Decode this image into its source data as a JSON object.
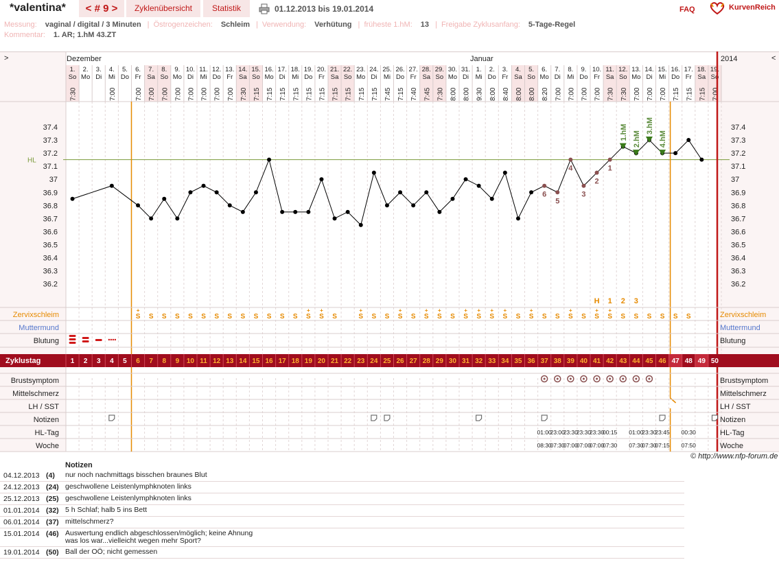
{
  "header": {
    "app_name": "*valentina*",
    "cycle_nav": "< # 9 >",
    "tab_overview": "Zyklenübersicht",
    "tab_stats": "Statistik",
    "date_range": "01.12.2013 bis 19.01.2014",
    "faq": "FAQ",
    "brand": "KurvenReich",
    "print_icon": "printer-icon",
    "logo_icon": "heart-logo-icon"
  },
  "meta": {
    "messung_label": "Messung:",
    "messung": "vaginal / digital / 3 Minuten",
    "oestrogen_label": "Östrogenzeichen:",
    "oestrogen": "Schleim",
    "verwendung_label": "Verwendung:",
    "verwendung": "Verhütung",
    "hm_label": "früheste 1.hM:",
    "hm": "13",
    "freigabe_label": "Freigabe Zyklusanfang:",
    "freigabe": "5-Tage-Regel",
    "kommentar_label": "Kommentar:",
    "kommentar": "1. AR; 1.hM 43.ZT"
  },
  "chart": {
    "left_arrow": ">",
    "right_arrow": "<",
    "month_dec": "Dezember",
    "month_jan": "Januar",
    "year": "2014",
    "hl_label": "HL",
    "days": [
      "1.",
      "2.",
      "3.",
      "4.",
      "5.",
      "6.",
      "7.",
      "8.",
      "9.",
      "10.",
      "11.",
      "12.",
      "13.",
      "14.",
      "15.",
      "16.",
      "17.",
      "18.",
      "19.",
      "20.",
      "21.",
      "22.",
      "23.",
      "24.",
      "25.",
      "26.",
      "27.",
      "28.",
      "29.",
      "30.",
      "31.",
      "1.",
      "2.",
      "3.",
      "4.",
      "5.",
      "6.",
      "7.",
      "8.",
      "9.",
      "10.",
      "11.",
      "12.",
      "13.",
      "14.",
      "15.",
      "16.",
      "17.",
      "18.",
      "19."
    ],
    "weekdays": [
      "So",
      "Mo",
      "Di",
      "Mi",
      "Do",
      "Fr",
      "Sa",
      "So",
      "Mo",
      "Di",
      "Mi",
      "Do",
      "Fr",
      "Sa",
      "So",
      "Mo",
      "Di",
      "Mi",
      "Do",
      "Fr",
      "Sa",
      "So",
      "Mo",
      "Di",
      "Mi",
      "Do",
      "Fr",
      "Sa",
      "So",
      "Mo",
      "Di",
      "Mi",
      "Do",
      "Fr",
      "Sa",
      "So",
      "Mo",
      "Di",
      "Mi",
      "Do",
      "Fr",
      "Sa",
      "So",
      "Mo",
      "Di",
      "Mi",
      "Do",
      "Fr",
      "Sa",
      "So"
    ],
    "times": [
      "7:30",
      "",
      "",
      "7:00",
      "",
      "7:00",
      "7:00",
      "7:00",
      "7:00",
      "7:00",
      "7:00",
      "7:00",
      "7:00",
      "7:30",
      "7:15",
      "7:15",
      "7:15",
      "7:15",
      "7:15",
      "7:15",
      "7:15",
      "7:15",
      "7:15",
      "7:15",
      "7:45",
      "7:15",
      "7:40",
      "7:45",
      "7:30",
      "8:00",
      "8:00",
      "9:30",
      "8:00",
      "8:40",
      "8:00",
      "8:00",
      "8:20",
      "7:00",
      "7:00",
      "7:00",
      "7:00",
      "7:30",
      "7:30",
      "7:00",
      "7:00",
      "7:00",
      "7:15",
      "7:15",
      "7:15",
      "7:00"
    ],
    "temps": [
      36.85,
      null,
      null,
      36.95,
      null,
      36.8,
      36.7,
      36.85,
      36.7,
      36.9,
      36.95,
      36.9,
      36.8,
      36.75,
      36.9,
      37.15,
      36.75,
      36.75,
      36.75,
      37.0,
      36.7,
      36.75,
      36.65,
      37.05,
      36.8,
      36.9,
      36.8,
      36.9,
      36.75,
      36.85,
      37.0,
      36.95,
      36.85,
      37.05,
      36.7,
      36.9,
      36.95,
      36.9,
      37.15,
      36.95,
      37.05,
      37.15,
      37.25,
      37.2,
      37.3,
      37.2,
      37.2,
      37.3,
      37.15,
      null
    ],
    "y_ticks": [
      "37.4",
      "37.3",
      "37.2",
      "37.1",
      "37",
      "36.9",
      "36.8",
      "36.7",
      "36.6",
      "36.5",
      "36.4",
      "36.3",
      "36.2"
    ],
    "hl_value": 37.15,
    "low_numbers": [
      {
        "day": 37,
        "label": "6"
      },
      {
        "day": 38,
        "label": "5"
      },
      {
        "day": 39,
        "label": "4"
      },
      {
        "day": 40,
        "label": "3"
      },
      {
        "day": 41,
        "label": "2"
      },
      {
        "day": 42,
        "label": "1"
      }
    ],
    "high_labels": [
      {
        "day": 43,
        "label": "1.hM"
      },
      {
        "day": 44,
        "label": "2.hM"
      },
      {
        "day": 45,
        "label": "3.hM"
      },
      {
        "day": 46,
        "label": "4.hM"
      }
    ],
    "hcount": [
      {
        "day": 41,
        "label": "H"
      },
      {
        "day": 42,
        "label": "1"
      },
      {
        "day": 43,
        "label": "2"
      },
      {
        "day": 44,
        "label": "3"
      }
    ],
    "mucus": [
      "",
      "",
      "",
      "",
      "",
      "S+",
      "S",
      "S",
      "S",
      "S",
      "S",
      "S",
      "S",
      "S",
      "S",
      "S",
      "S",
      "S",
      "S+",
      "S+",
      "S",
      "",
      "S+",
      "S",
      "S",
      "S+",
      "S",
      "S+",
      "S+",
      "S",
      "S+",
      "S+",
      "S+",
      "S+",
      "S",
      "S+",
      "S",
      "S",
      "S+",
      "S",
      "S+",
      "S+",
      "S",
      "S",
      "S",
      "S",
      "S",
      "S",
      "",
      ""
    ],
    "bleeding": [
      3,
      2,
      1,
      0.5,
      0
    ],
    "row_labels": {
      "zervix": "Zervixschleim",
      "muttermund": "Muttermund",
      "blutung": "Blutung",
      "zyklustag": "Zyklustag",
      "brust": "Brustsymptom",
      "mittel": "Mittelschmerz",
      "lh": "LH / SST",
      "notizen": "Notizen",
      "hltag": "HL-Tag",
      "woche": "Woche"
    },
    "brust_days": [
      37,
      38,
      39,
      40,
      41,
      42,
      43,
      44,
      45
    ],
    "note_days": [
      4,
      24,
      25,
      32,
      37,
      46,
      50
    ],
    "hltag": [
      {
        "day": 37,
        "label": "01:00"
      },
      {
        "day": 38,
        "label": "23:00"
      },
      {
        "day": 39,
        "label": "23:30"
      },
      {
        "day": 40,
        "label": "23:30"
      },
      {
        "day": 41,
        "label": "23:30"
      },
      {
        "day": 42,
        "label": "00:15"
      },
      {
        "day": 44,
        "label": "01:00"
      },
      {
        "day": 45,
        "label": "23:30"
      },
      {
        "day": 46,
        "label": "23:45"
      },
      {
        "day": 48,
        "label": "00:30"
      }
    ],
    "woche": [
      {
        "day": 37,
        "label": "08:30"
      },
      {
        "day": 38,
        "label": "07:30"
      },
      {
        "day": 39,
        "label": "07:00"
      },
      {
        "day": 40,
        "label": "07:00"
      },
      {
        "day": 41,
        "label": "07:00"
      },
      {
        "day": 42,
        "label": "07:30"
      },
      {
        "day": 44,
        "label": "07:30"
      },
      {
        "day": 45,
        "label": "07:30"
      },
      {
        "day": 46,
        "label": "07:15"
      },
      {
        "day": 48,
        "label": "07:50"
      }
    ]
  },
  "copyright": "© http://www.nfp-forum.de",
  "notes": {
    "header": "Notizen",
    "items": [
      {
        "date": "04.12.2013",
        "day": "(4)",
        "text": "nur noch nachmittags bisschen braunes Blut",
        "text2": ""
      },
      {
        "date": "24.12.2013",
        "day": "(24)",
        "text": "geschwollene Leistenlymphknoten links",
        "text2": ""
      },
      {
        "date": "25.12.2013",
        "day": "(25)",
        "text": "geschwollene Leistenlymphknoten links",
        "text2": ""
      },
      {
        "date": "01.01.2014",
        "day": "(32)",
        "text": "5 h Schlaf; halb 5 ins Bett",
        "text2": ""
      },
      {
        "date": "06.01.2014",
        "day": "(37)",
        "text": "mittelschmerz?",
        "text2": ""
      },
      {
        "date": "15.01.2014",
        "day": "(46)",
        "text": "Auswertung endlich abgeschlossen/möglich; keine Ahnung",
        "text2": "was los war...vielleicht wegen mehr Sport?"
      },
      {
        "date": "19.01.2014",
        "day": "(50)",
        "text": "Ball der OÖ; nicht gemessen",
        "text2": ""
      }
    ]
  }
}
